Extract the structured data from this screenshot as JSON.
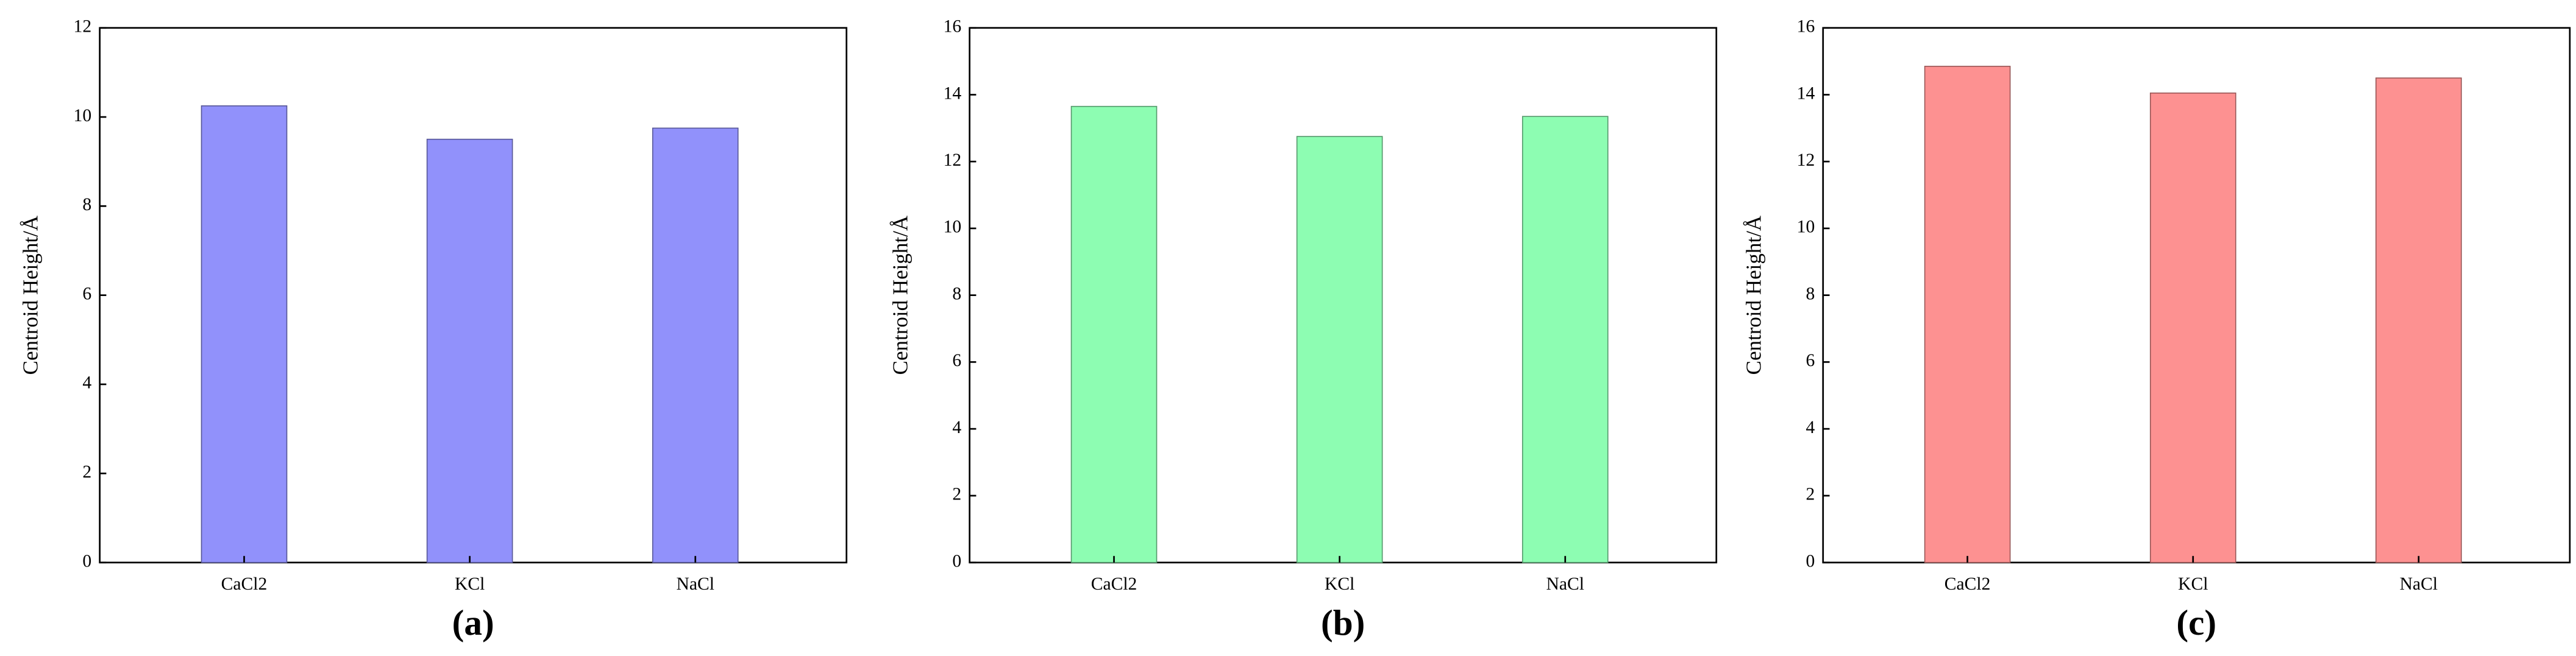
{
  "chart_data": [
    {
      "type": "bar",
      "label": "(a)",
      "ylabel": "Centroid Height/Å",
      "categories": [
        "CaCl2",
        "KCl",
        "NaCl"
      ],
      "values": [
        10.25,
        9.5,
        9.75
      ],
      "color": "#9191fb",
      "ylim": [
        0,
        12
      ],
      "yticks": [
        0,
        2,
        4,
        6,
        8,
        10,
        12
      ]
    },
    {
      "type": "bar",
      "label": "(b)",
      "ylabel": "Centroid Height/Å",
      "categories": [
        "CaCl2",
        "KCl",
        "NaCl"
      ],
      "values": [
        13.65,
        12.75,
        13.35
      ],
      "color": "#8dfdb2",
      "ylim": [
        0,
        16
      ],
      "yticks": [
        0,
        2,
        4,
        6,
        8,
        10,
        12,
        14,
        16
      ]
    },
    {
      "type": "bar",
      "label": "(c)",
      "ylabel": "Centroid Height/Å",
      "categories": [
        "CaCl2",
        "KCl",
        "NaCl"
      ],
      "values": [
        14.85,
        14.05,
        14.5
      ],
      "color": "#fd9191",
      "ylim": [
        0,
        16
      ],
      "yticks": [
        0,
        2,
        4,
        6,
        8,
        10,
        12,
        14,
        16
      ]
    }
  ]
}
